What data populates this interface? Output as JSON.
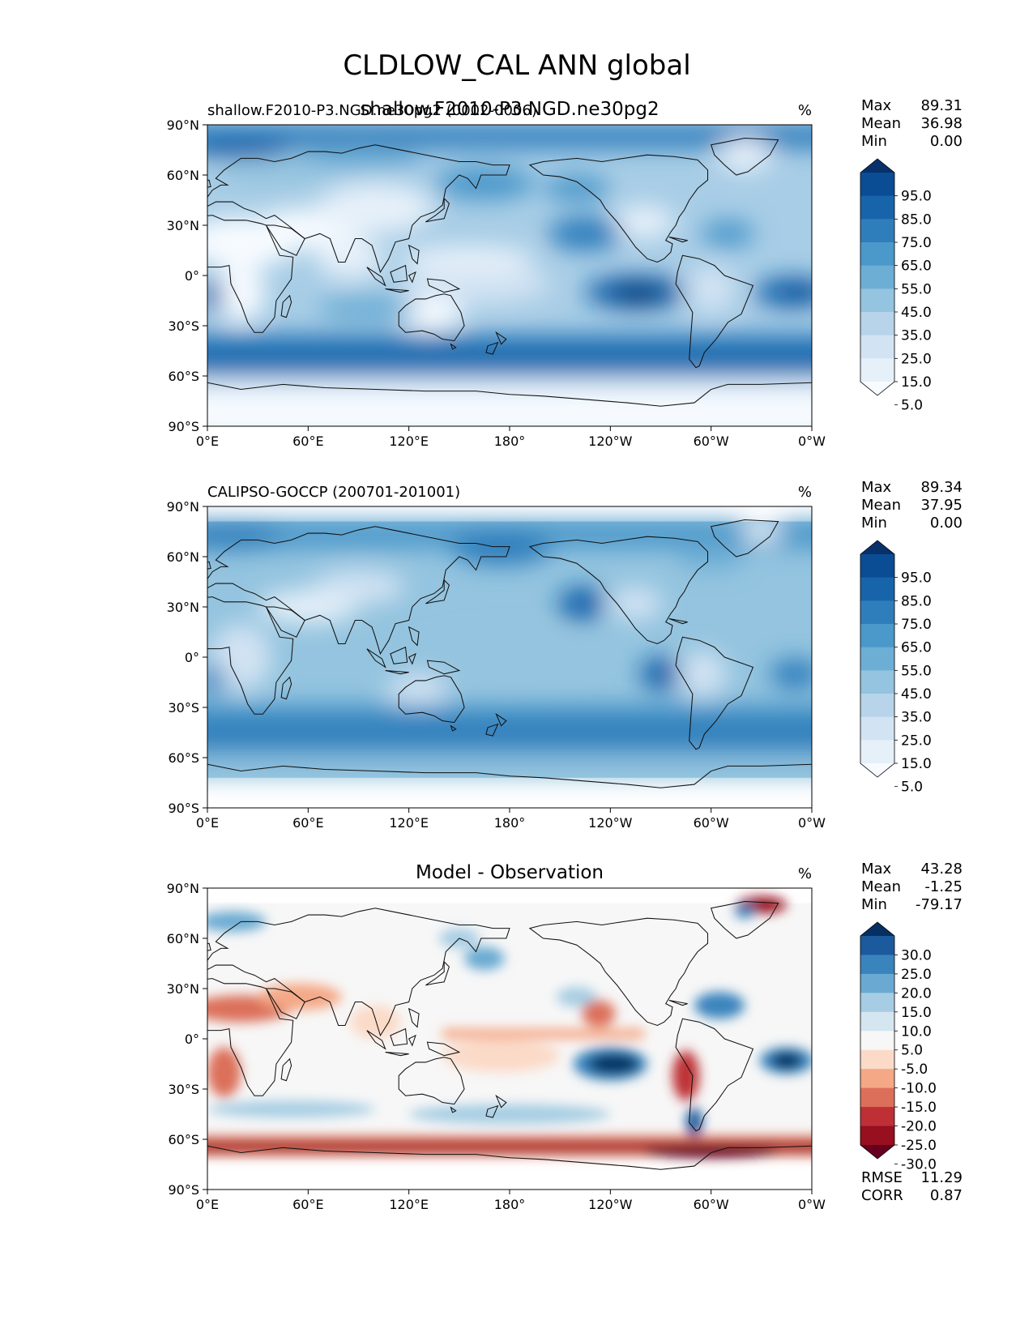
{
  "figure": {
    "title": "CLDLOW_CAL ANN global"
  },
  "chart_data": [
    {
      "type": "heatmap",
      "panel": "test",
      "title": "shallow.F2010-P3.NGD.ne30pg2",
      "left_title": "shallow.F2010-P3.NGD.ne30pg2 (0002-0006)",
      "units": "%",
      "stats": [
        {
          "label": "Max",
          "value": "89.31"
        },
        {
          "label": "Mean",
          "value": "36.98"
        },
        {
          "label": "Min",
          "value": "0.00"
        }
      ],
      "colorbar": {
        "levels": [
          "95.0",
          "85.0",
          "75.0",
          "65.0",
          "55.0",
          "45.0",
          "35.0",
          "25.0",
          "15.0",
          "5.0"
        ],
        "colors": [
          "#08306b",
          "#0b4d94",
          "#1764ab",
          "#2f7ebc",
          "#4b98ca",
          "#6daed5",
          "#94c4df",
          "#b7d4ea",
          "#d2e3f3",
          "#e6f0f9",
          "#f7fbff"
        ],
        "extend": "both"
      },
      "xticks": [
        "0°E",
        "60°E",
        "120°E",
        "180°",
        "120°W",
        "60°W",
        "0°W"
      ],
      "yticks": [
        "90°N",
        "60°N",
        "30°N",
        "0°",
        "30°S",
        "60°S",
        "90°S"
      ]
    },
    {
      "type": "heatmap",
      "panel": "reference",
      "left_title": "CALIPSO-GOCCP (200701-201001)",
      "units": "%",
      "stats": [
        {
          "label": "Max",
          "value": "89.34"
        },
        {
          "label": "Mean",
          "value": "37.95"
        },
        {
          "label": "Min",
          "value": "0.00"
        }
      ],
      "colorbar": {
        "levels": [
          "95.0",
          "85.0",
          "75.0",
          "65.0",
          "55.0",
          "45.0",
          "35.0",
          "25.0",
          "15.0",
          "5.0"
        ],
        "colors": [
          "#08306b",
          "#0b4d94",
          "#1764ab",
          "#2f7ebc",
          "#4b98ca",
          "#6daed5",
          "#94c4df",
          "#b7d4ea",
          "#d2e3f3",
          "#e6f0f9",
          "#f7fbff"
        ],
        "extend": "both"
      },
      "xticks": [
        "0°E",
        "60°E",
        "120°E",
        "180°",
        "120°W",
        "60°W",
        "0°W"
      ],
      "yticks": [
        "90°N",
        "60°N",
        "30°N",
        "0°",
        "30°S",
        "60°S",
        "90°S"
      ]
    },
    {
      "type": "heatmap",
      "panel": "difference",
      "title": "Model - Observation",
      "units": "%",
      "stats": [
        {
          "label": "Max",
          "value": "43.28"
        },
        {
          "label": "Mean",
          "value": "-1.25"
        },
        {
          "label": "Min",
          "value": "-79.17"
        }
      ],
      "extra_stats": [
        {
          "label": "RMSE",
          "value": "11.29"
        },
        {
          "label": "CORR",
          "value": "0.87"
        }
      ],
      "colorbar": {
        "levels": [
          "30.0",
          "25.0",
          "20.0",
          "15.0",
          "10.0",
          "5.0",
          "-5.0",
          "-10.0",
          "-15.0",
          "-20.0",
          "-25.0",
          "-30.0"
        ],
        "colors": [
          "#053061",
          "#1b5a9c",
          "#3a84bd",
          "#6aaad2",
          "#a6cde3",
          "#d4e6f0",
          "#f7f7f7",
          "#fbdac8",
          "#f4a886",
          "#dc6f5a",
          "#be3036",
          "#98101f",
          "#67001f"
        ],
        "extend": "both"
      },
      "xticks": [
        "0°E",
        "60°E",
        "120°E",
        "180°",
        "120°W",
        "60°W",
        "0°W"
      ],
      "yticks": [
        "90°N",
        "60°N",
        "30°N",
        "0°",
        "30°S",
        "60°S",
        "90°S"
      ]
    }
  ]
}
